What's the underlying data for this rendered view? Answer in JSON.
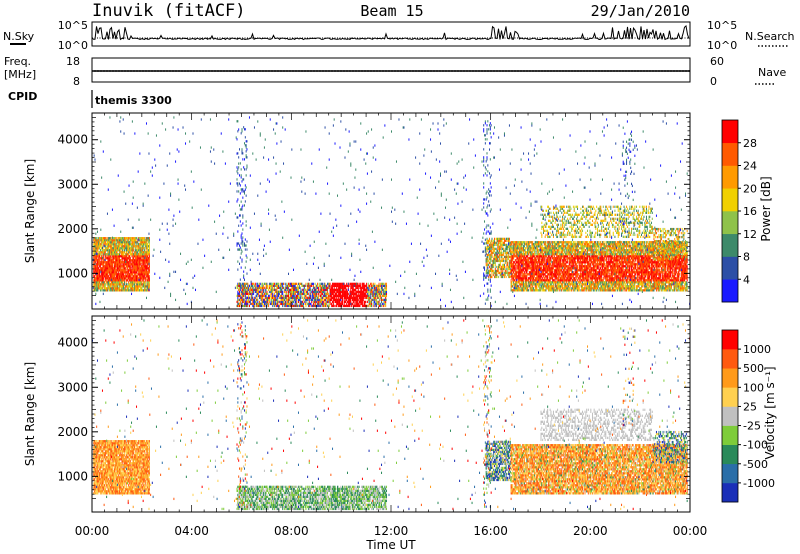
{
  "header": {
    "station": "Inuvik (fitACF)",
    "beam": "Beam 15",
    "date": "29/Jan/2010"
  },
  "top_panels": {
    "nsky": {
      "label": "N.Sky",
      "ticks": [
        "10^5",
        "10^0"
      ]
    },
    "nsearch": {
      "label": "N.Search",
      "ticks": [
        "10^5",
        "10^0"
      ]
    },
    "freq": {
      "label_1": "Freq.",
      "label_2": "[MHz]",
      "ticks": [
        "18",
        "8"
      ]
    },
    "nave": {
      "label": "Nave",
      "ticks": [
        "60",
        "0"
      ]
    },
    "cpid": {
      "label": "CPID",
      "value": "themis 3300"
    }
  },
  "colors": {
    "power_scale": [
      "#1a1aff",
      "#2c4fa6",
      "#3d8a6a",
      "#8fc24a",
      "#f0d000",
      "#ff9a00",
      "#ff5a00",
      "#ff0000"
    ],
    "velocity_scale": [
      "#1a2fb8",
      "#2a6ea8",
      "#2a8a5a",
      "#7ecc3a",
      "#c0c0c0",
      "#ffd050",
      "#ff9a1a",
      "#ff5a10",
      "#ff0000"
    ]
  },
  "chart_data": [
    {
      "type": "heatmap",
      "title": "",
      "ylabel": "Slant Range [km]",
      "xlabel": "",
      "yticks": [
        "1000",
        "2000",
        "3000",
        "4000"
      ],
      "ylim": [
        200,
        4600
      ],
      "colorbar": {
        "label": "Power [dB]",
        "ticks": [
          "4",
          "8",
          "12",
          "16",
          "20",
          "24",
          "28"
        ]
      }
    },
    {
      "type": "heatmap",
      "title": "",
      "ylabel": "Slant Range [km]",
      "xlabel": "Time UT",
      "yticks": [
        "1000",
        "2000",
        "3000",
        "4000"
      ],
      "xticks": [
        "00:00",
        "04:00",
        "08:00",
        "12:00",
        "16:00",
        "20:00",
        "00:00"
      ],
      "ylim": [
        200,
        4600
      ],
      "colorbar": {
        "label": "Velocity [m s⁻¹]",
        "ticks": [
          "1000",
          "500",
          "100",
          "25",
          "-25",
          "-100",
          "-500",
          "-1000"
        ]
      }
    }
  ]
}
